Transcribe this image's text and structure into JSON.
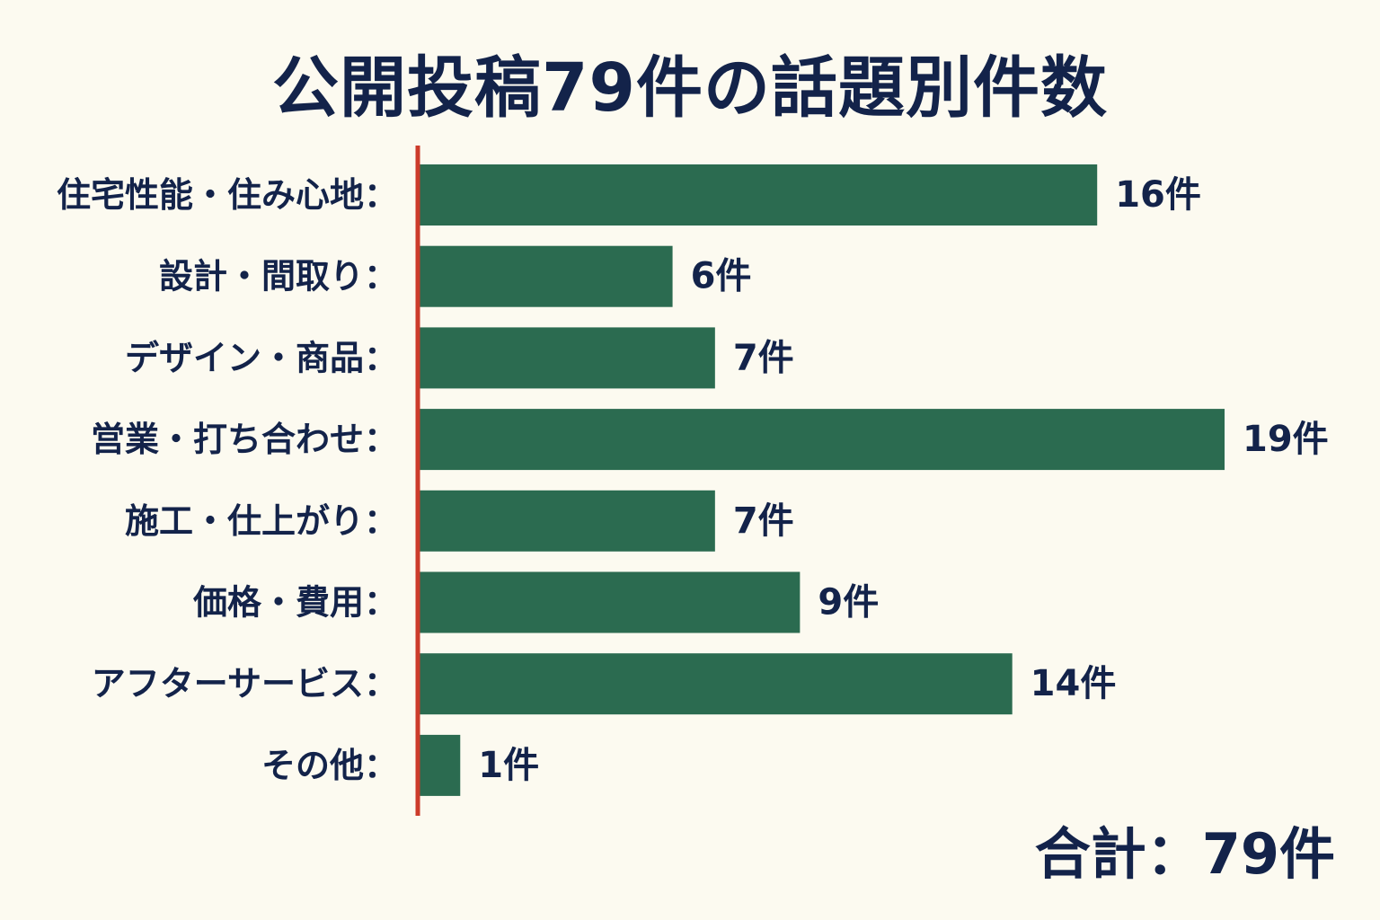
{
  "chart_data": {
    "type": "bar",
    "orientation": "horizontal",
    "title": "公開投稿79件の話題別件数",
    "categories": [
      "住宅性能・住み心地：",
      "設計・間取り：",
      "デザイン・商品：",
      "営業・打ち合わせ：",
      "施工・仕上がり：",
      "価格・費用：",
      "アフターサービス：",
      "その他："
    ],
    "values": [
      16,
      6,
      7,
      19,
      7,
      9,
      14,
      1
    ],
    "value_labels": [
      "16件",
      "6件",
      "7件",
      "19件",
      "7件",
      "9件",
      "14件",
      "1件"
    ],
    "xlim": [
      0,
      19
    ],
    "grid": false,
    "legend": "none",
    "total_label": "合計：79件"
  },
  "colors": {
    "bar": "#2b6b50",
    "axis": "#cc3b2a",
    "text": "#13234a",
    "background": "#fcfaf0"
  }
}
